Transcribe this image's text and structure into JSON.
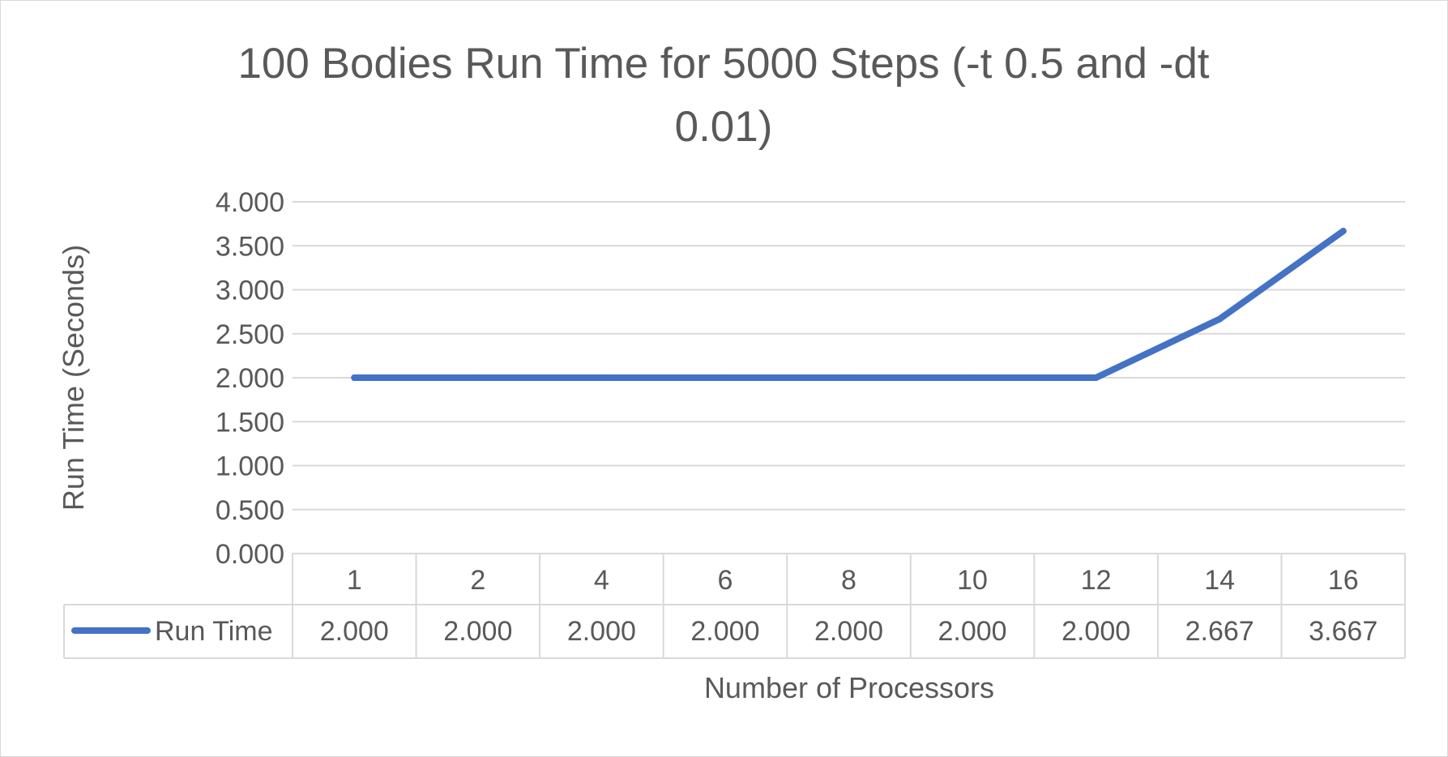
{
  "chart_data": {
    "type": "line",
    "title_lines": [
      "100 Bodies Run Time for 5000 Steps (-t 0.5 and -dt",
      "0.01)"
    ],
    "xlabel": "Number of Processors",
    "ylabel": "Run Time (Seconds)",
    "categories": [
      "1",
      "2",
      "4",
      "6",
      "8",
      "10",
      "12",
      "14",
      "16"
    ],
    "ylim": [
      0,
      4
    ],
    "yticks": [
      "0.000",
      "0.500",
      "1.000",
      "1.500",
      "2.000",
      "2.500",
      "3.000",
      "3.500",
      "4.000"
    ],
    "grid": true,
    "legend": "data table",
    "series": [
      {
        "name": "Run Time",
        "color": "#4472c4",
        "values": [
          2.0,
          2.0,
          2.0,
          2.0,
          2.0,
          2.0,
          2.0,
          2.667,
          3.667
        ],
        "labels": [
          "2.000",
          "2.000",
          "2.000",
          "2.000",
          "2.000",
          "2.000",
          "2.000",
          "2.667",
          "3.667"
        ]
      }
    ]
  }
}
